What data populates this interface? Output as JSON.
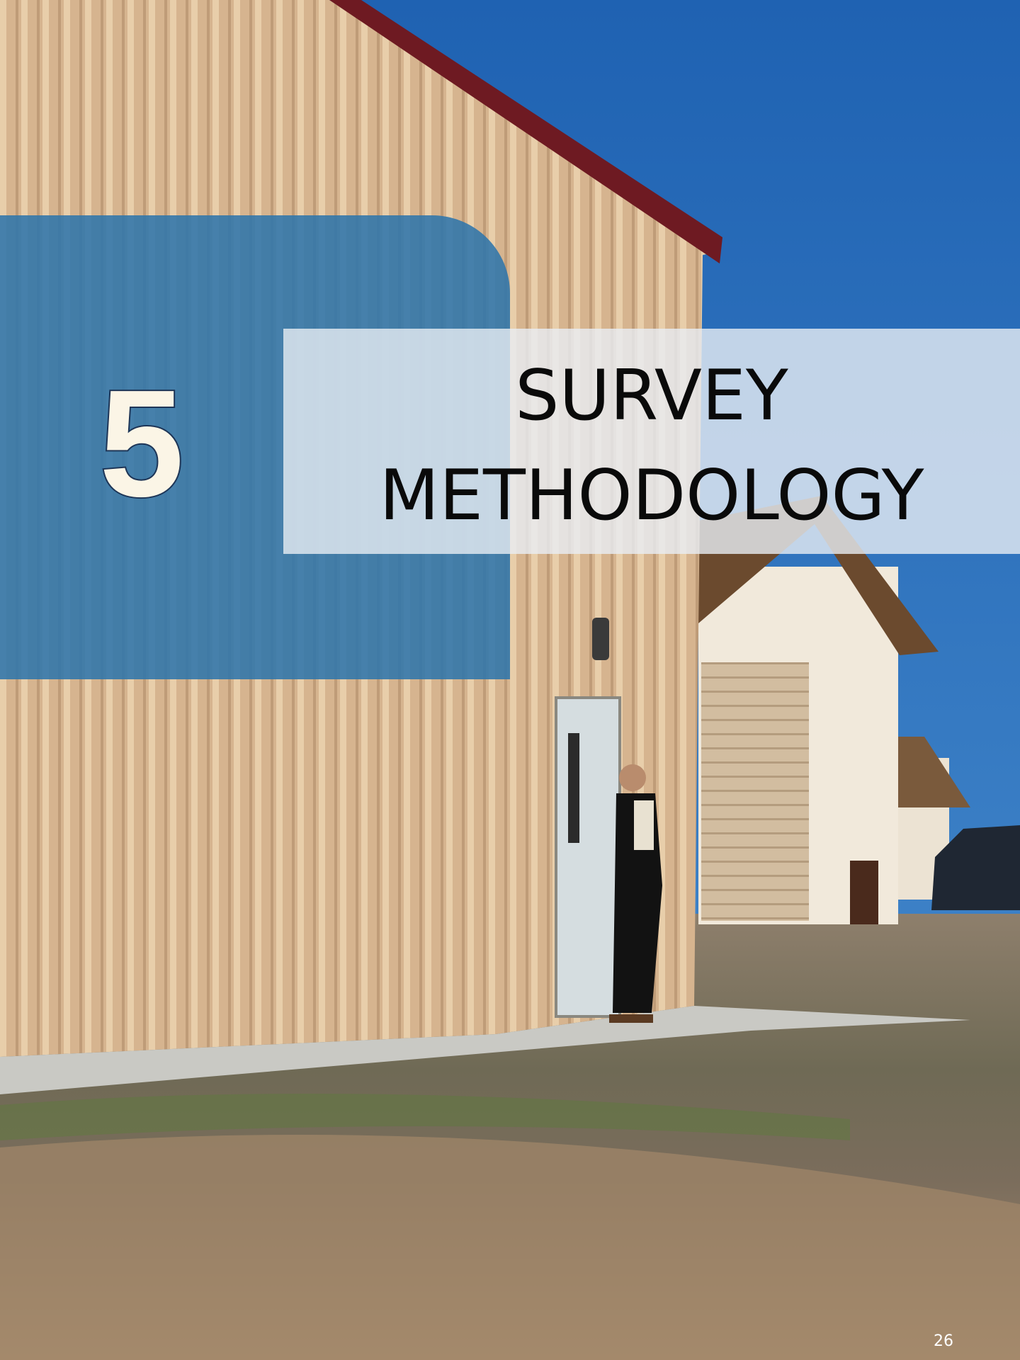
{
  "chapter": {
    "number": "5",
    "title_lines": [
      "SURVEY",
      "METHODOLOGY"
    ]
  },
  "page_number": "26"
}
